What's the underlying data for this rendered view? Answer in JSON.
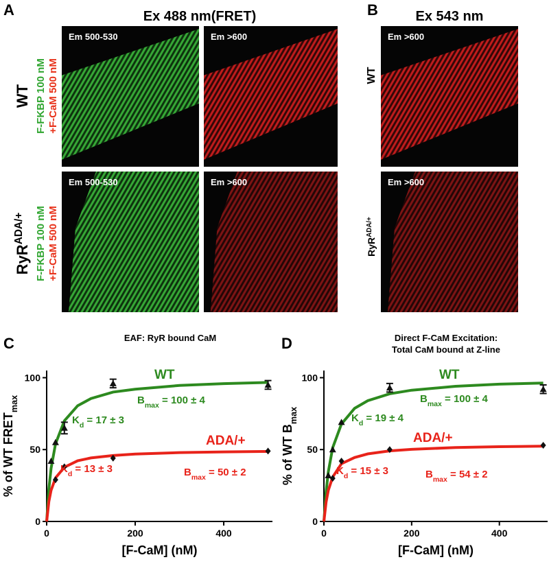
{
  "figure": {
    "labels": [
      "A",
      "B",
      "C",
      "D"
    ],
    "panel_a": {
      "title": "Ex 488 nm(FRET)",
      "em": [
        [
          "Em 500-530",
          "Em >600"
        ],
        [
          "Em 500-530",
          "Em >600"
        ]
      ]
    },
    "panel_b": {
      "title": "Ex 543 nm",
      "em": [
        "Em >600",
        "Em >600"
      ]
    },
    "rows": [
      {
        "genotype": {
          "text": "WT"
        },
        "line1": "F-FKBP 100 nM",
        "line2": "+F-CaM 500 nM"
      },
      {
        "genotype": {
          "text": "RyR",
          "sup": "ADA/+"
        },
        "line1": "F-FKBP 100 nM",
        "line2": "+F-CaM 500 nM"
      }
    ],
    "panel_b_rows": [
      {
        "text": "WT"
      },
      {
        "text": "RyR",
        "sup": "ADA/+"
      }
    ]
  },
  "chart_data": [
    {
      "type": "scatter",
      "title": [
        "EAF: RyR bound CaM"
      ],
      "xlabel": "[F-CaM] (nM)",
      "ylabel": {
        "text": "% of WT FRET",
        "sub": "max"
      },
      "xlim": [
        0,
        510
      ],
      "ylim": [
        0,
        105
      ],
      "xticks": [
        0,
        200,
        400
      ],
      "yticks": [
        0,
        50,
        100
      ],
      "fit_x": [
        0,
        5,
        10,
        20,
        40,
        70,
        100,
        150,
        200,
        300,
        400,
        500
      ],
      "series": [
        {
          "name": "WT",
          "color": "#2d8a1f",
          "marker": "triangle",
          "x": [
            10,
            20,
            40,
            150,
            500
          ],
          "values": [
            42,
            55,
            65,
            96,
            95
          ],
          "errors": [
            null,
            null,
            4,
            3,
            3
          ],
          "fit": [
            0,
            22.7,
            37,
            54,
            70,
            80.5,
            85.5,
            90,
            92,
            94.6,
            95.9,
            96.7
          ],
          "annotations": [
            {
              "text": "B",
              "sub": "max",
              "rest": " = 100 ± 4"
            },
            {
              "text": "K",
              "sub": "d",
              "rest": " = 17 ± 3"
            }
          ]
        },
        {
          "name": "ADA/+",
          "color": "#e8231a",
          "marker": "diamond",
          "x": [
            20,
            40,
            150,
            500
          ],
          "values": [
            29,
            38,
            44,
            49
          ],
          "fit": [
            0,
            13.9,
            21.7,
            30.3,
            37.7,
            42.2,
            44.2,
            45.9,
            46.9,
            47.9,
            48.4,
            48.7
          ],
          "annotations": [
            {
              "text": "B",
              "sub": "max",
              "rest": " = 50 ± 2"
            },
            {
              "text": "K",
              "sub": "d",
              "rest": " = 13 ± 3"
            }
          ]
        }
      ]
    },
    {
      "type": "scatter",
      "title": [
        "Direct F-CaM Excitation:",
        "Total CaM bound at Z-line"
      ],
      "xlabel": "[F-CaM] (nM)",
      "ylabel": {
        "text": "% of WT B",
        "sub": "max"
      },
      "xlim": [
        0,
        510
      ],
      "ylim": [
        0,
        105
      ],
      "xticks": [
        0,
        200,
        400
      ],
      "yticks": [
        0,
        50,
        100
      ],
      "fit_x": [
        0,
        5,
        10,
        20,
        40,
        70,
        100,
        150,
        200,
        300,
        400,
        500
      ],
      "series": [
        {
          "name": "WT",
          "color": "#2d8a1f",
          "marker": "triangle",
          "x": [
            10,
            20,
            40,
            150,
            500
          ],
          "values": [
            32,
            50,
            69,
            93,
            92
          ],
          "errors": [
            null,
            null,
            null,
            3,
            3
          ],
          "fit": [
            0,
            20.8,
            34.5,
            51.3,
            67.8,
            78.7,
            84,
            88.8,
            91.3,
            94,
            95.5,
            96.3
          ],
          "annotations": [
            {
              "text": "B",
              "sub": "max",
              "rest": " = 100 ± 4"
            },
            {
              "text": "K",
              "sub": "d",
              "rest": " = 19 ± 4"
            }
          ]
        },
        {
          "name": "ADA/+",
          "color": "#e8231a",
          "marker": "diamond",
          "x": [
            20,
            40,
            150,
            500
          ],
          "values": [
            30,
            42,
            50,
            53
          ],
          "fit": [
            0,
            13.5,
            21.6,
            30.9,
            40.2,
            44.5,
            47,
            49.1,
            50.2,
            51.4,
            52,
            52.4
          ],
          "annotations": [
            {
              "text": "B",
              "sub": "max",
              "rest": " = 54 ± 2"
            },
            {
              "text": "K",
              "sub": "d",
              "rest": " = 15 ± 3"
            }
          ]
        }
      ]
    }
  ]
}
